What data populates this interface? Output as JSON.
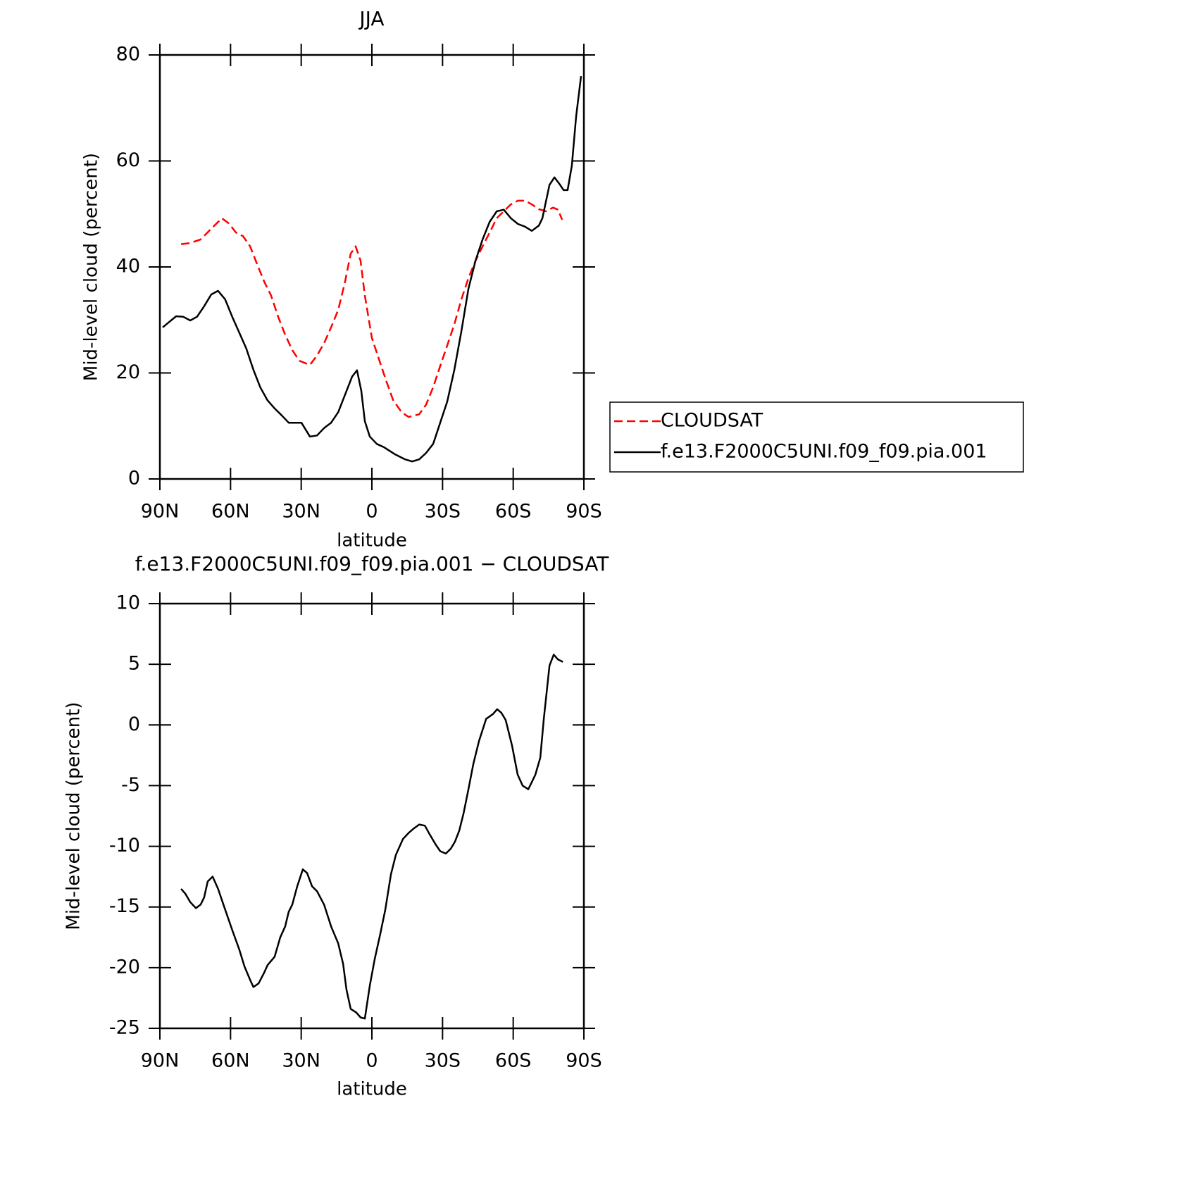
{
  "chart_data": [
    {
      "type": "line",
      "title": "JJA",
      "xlabel": "latitude",
      "ylabel": "Mid-level cloud (percent)",
      "xlim": [
        90,
        -90
      ],
      "xticks": [
        {
          "value": 90,
          "label": "90N"
        },
        {
          "value": 60,
          "label": "60N"
        },
        {
          "value": 30,
          "label": "30N"
        },
        0,
        {
          "value": -30,
          "label": "30S"
        },
        {
          "value": -60,
          "label": "60S"
        },
        {
          "value": -90,
          "label": "90S"
        }
      ],
      "ylim": [
        0,
        80
      ],
      "yticks": [
        0,
        20,
        40,
        60,
        80
      ],
      "legend": "right",
      "series": [
        {
          "name": "CLOUDSAT",
          "color": "#ff0000",
          "dash": "dashed",
          "x": [
            81.0,
            77.1,
            72.7,
            68.2,
            63.7,
            60.7,
            57.7,
            54.7,
            51.7,
            48.7,
            45.7,
            42.8,
            39.8,
            36.8,
            33.8,
            30.8,
            26.3,
            23.3,
            20.3,
            17.3,
            14.3,
            11.4,
            9.0,
            6.9,
            4.8,
            3.0,
            0.0,
            -3.0,
            -6.0,
            -9.0,
            -12.6,
            -15.6,
            -20.1,
            -23.0,
            -26.0,
            -29.0,
            -32.0,
            -35.0,
            -38.0,
            -41.0,
            -44.0,
            -47.0,
            -50.0,
            -53.0,
            -56.0,
            -59.0,
            -62.0,
            -65.0,
            -67.9,
            -70.9,
            -73.9,
            -76.9,
            -79.0,
            -80.8
          ],
          "values": [
            44.3,
            44.5,
            45.2,
            47.2,
            49.2,
            48.2,
            46.5,
            45.8,
            43.9,
            40.5,
            37.2,
            34.6,
            30.6,
            27.2,
            24.3,
            22.3,
            21.5,
            23.3,
            25.6,
            28.6,
            31.9,
            37.2,
            42.5,
            43.9,
            41.2,
            34.6,
            26.6,
            22.6,
            18.6,
            14.9,
            12.6,
            11.7,
            12.2,
            14.0,
            17.3,
            21.3,
            25.2,
            29.2,
            33.9,
            37.9,
            41.2,
            43.9,
            46.5,
            49.2,
            50.5,
            51.8,
            52.5,
            52.5,
            51.8,
            50.9,
            50.5,
            51.2,
            50.8,
            48.9
          ]
        },
        {
          "name": "f.e13.F2000C5UNI.f09_f09.pia.001",
          "color": "#000000",
          "dash": "solid",
          "x": [
            88.8,
            86.1,
            83.1,
            80.1,
            77.1,
            74.2,
            71.2,
            68.2,
            65.3,
            62.3,
            59.3,
            56.3,
            53.3,
            50.3,
            47.4,
            44.4,
            41.3,
            38.3,
            35.3,
            32.9,
            29.9,
            26.3,
            23.3,
            20.3,
            17.3,
            14.3,
            11.4,
            8.4,
            6.3,
            4.5,
            3.0,
            0.9,
            -2.1,
            -5.1,
            -9.6,
            -14.1,
            -17.1,
            -20.1,
            -23.0,
            -26.0,
            -29.0,
            -32.0,
            -35.0,
            -38.0,
            -41.0,
            -44.0,
            -47.0,
            -50.0,
            -53.0,
            -56.0,
            -59.0,
            -62.0,
            -65.0,
            -67.9,
            -70.9,
            -72.4,
            -75.4,
            -77.5,
            -79.9,
            -81.4,
            -83.1,
            -84.9,
            -86.7,
            -88.8
          ],
          "values": [
            28.6,
            29.6,
            30.7,
            30.6,
            29.9,
            30.6,
            32.6,
            34.8,
            35.5,
            33.9,
            30.6,
            27.6,
            24.6,
            20.6,
            17.3,
            14.9,
            13.3,
            12.0,
            10.6,
            10.6,
            10.6,
            8.0,
            8.2,
            9.6,
            10.6,
            12.6,
            15.9,
            19.3,
            20.5,
            16.6,
            10.9,
            8.0,
            6.6,
            6.0,
            4.7,
            3.7,
            3.3,
            3.7,
            4.9,
            6.6,
            10.6,
            14.6,
            20.6,
            27.9,
            35.9,
            41.2,
            45.2,
            48.5,
            50.5,
            50.8,
            49.2,
            48.1,
            47.6,
            46.8,
            47.8,
            49.2,
            55.5,
            56.9,
            55.5,
            54.5,
            54.5,
            59.1,
            68.4,
            76.0
          ]
        }
      ]
    },
    {
      "type": "line",
      "title": "f.e13.F2000C5UNI.f09_f09.pia.001 − CLOUDSAT",
      "xlabel": "latitude",
      "ylabel": "Mid-level cloud (percent)",
      "xlim": [
        90,
        -90
      ],
      "xticks": [
        {
          "value": 90,
          "label": "90N"
        },
        {
          "value": 60,
          "label": "60N"
        },
        {
          "value": 30,
          "label": "30N"
        },
        0,
        {
          "value": -30,
          "label": "30S"
        },
        {
          "value": -60,
          "label": "60S"
        },
        {
          "value": -90,
          "label": "90S"
        }
      ],
      "ylim": [
        -25,
        10
      ],
      "yticks": [
        -25,
        -20,
        -15,
        -10,
        -5,
        0,
        5,
        10
      ],
      "series": [
        {
          "color": "#000000",
          "dash": "solid",
          "x": [
            81.0,
            79.2,
            77.1,
            74.7,
            72.7,
            71.2,
            69.7,
            67.6,
            65.3,
            62.3,
            59.3,
            56.3,
            54.1,
            51.7,
            50.3,
            48.1,
            45.7,
            44.3,
            41.3,
            38.9,
            36.8,
            35.3,
            33.8,
            31.7,
            29.3,
            27.5,
            25.4,
            23.3,
            20.3,
            17.3,
            14.3,
            12.2,
            10.8,
            9.0,
            6.6,
            4.8,
            3.0,
            0.9,
            -1.2,
            -3.6,
            -5.7,
            -8.1,
            -10.2,
            -13.2,
            -15.6,
            -18.0,
            -20.1,
            -22.5,
            -24.5,
            -26.9,
            -29.0,
            -31.4,
            -33.5,
            -35.3,
            -37.1,
            -38.9,
            -41.0,
            -43.1,
            -45.5,
            -48.5,
            -51.4,
            -53.2,
            -55.0,
            -56.8,
            -59.5,
            -61.9,
            -64.0,
            -66.4,
            -67.9,
            -69.4,
            -71.5,
            -73.0,
            -75.4,
            -77.2,
            -79.0,
            -81.1
          ],
          "values": [
            -13.5,
            -13.9,
            -14.6,
            -15.1,
            -14.8,
            -14.2,
            -12.9,
            -12.5,
            -13.5,
            -15.2,
            -16.9,
            -18.5,
            -19.9,
            -21.0,
            -21.6,
            -21.3,
            -20.4,
            -19.8,
            -19.1,
            -17.5,
            -16.6,
            -15.4,
            -14.8,
            -13.3,
            -11.9,
            -12.2,
            -13.3,
            -13.7,
            -14.8,
            -16.6,
            -18.0,
            -19.7,
            -21.8,
            -23.4,
            -23.7,
            -24.1,
            -24.2,
            -21.5,
            -19.3,
            -17.2,
            -15.2,
            -12.3,
            -10.7,
            -9.4,
            -8.9,
            -8.5,
            -8.2,
            -8.3,
            -9.0,
            -9.8,
            -10.4,
            -10.6,
            -10.2,
            -9.6,
            -8.7,
            -7.3,
            -5.3,
            -3.2,
            -1.3,
            0.5,
            0.9,
            1.3,
            1.0,
            0.4,
            -1.7,
            -4.1,
            -5.0,
            -5.3,
            -4.7,
            -4.1,
            -2.7,
            0.5,
            4.9,
            5.8,
            5.4,
            5.2
          ]
        }
      ]
    }
  ]
}
